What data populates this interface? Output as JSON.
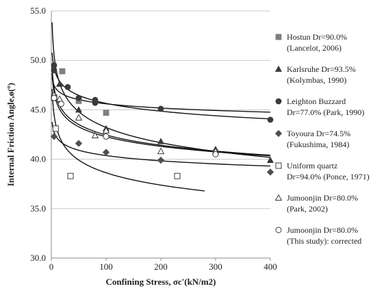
{
  "chart_data": {
    "type": "scatter",
    "xlabel": "Confining Stress, σc'(kN/m2)",
    "ylabel": "Internal Friction Angle,ø(º)",
    "xlim": [
      0,
      400
    ],
    "ylim": [
      30,
      55
    ],
    "x_ticks": [
      "0",
      "100",
      "200",
      "300",
      "400"
    ],
    "y_ticks": [
      "30.0",
      "35.0",
      "40.0",
      "45.0",
      "50.0",
      "55.0"
    ],
    "grid": "horizontal",
    "legend_position": "right",
    "series": [
      {
        "name": "Hostun Dr=90.0%",
        "name2": "(Lancelot, 2006)",
        "marker": "square",
        "color": "#7f7f7f",
        "points": [
          [
            5,
            46.3
          ],
          [
            20,
            48.9
          ],
          [
            50,
            45.9
          ],
          [
            100,
            44.7
          ]
        ]
      },
      {
        "name": "Karlsruhe Dr=93.5%",
        "name2": "(Kolymbas, 1990)",
        "marker": "triangle",
        "color": "#3a3a3a",
        "points": [
          [
            15,
            47.6
          ],
          [
            50,
            45.0
          ],
          [
            100,
            43.1
          ],
          [
            200,
            41.8
          ],
          [
            300,
            41.0
          ],
          [
            400,
            39.9
          ]
        ]
      },
      {
        "name": "Leighton Buzzard",
        "name2": "Dr=77.0% (Park, 1990)",
        "marker": "circle",
        "color": "#3a3a3a",
        "points": [
          [
            5,
            49.5
          ],
          [
            5,
            49.0
          ],
          [
            30,
            47.3
          ],
          [
            50,
            46.2
          ],
          [
            80,
            46.0
          ],
          [
            80,
            45.7
          ],
          [
            200,
            45.1
          ],
          [
            400,
            44.0
          ]
        ]
      },
      {
        "name": "Toyoura Dr=74.5%",
        "name2": "(Fukushima, 1984)",
        "marker": "diamond",
        "color": "#505050",
        "points": [
          [
            5,
            42.3
          ],
          [
            50,
            41.6
          ],
          [
            100,
            40.7
          ],
          [
            200,
            39.9
          ],
          [
            400,
            38.7
          ]
        ]
      },
      {
        "name": "Uniform quartz",
        "name2": "Dr=94.0% (Ponce, 1971)",
        "marker": "square-open",
        "color": "#3a3a3a",
        "points": [
          [
            5,
            46.2
          ],
          [
            8,
            43.1
          ],
          [
            35,
            38.3
          ],
          [
            230,
            38.3
          ]
        ]
      },
      {
        "name": "Jumoonjin Dr=80.0%",
        "name2": "(Park, 2002)",
        "marker": "triangle-open",
        "color": "#3a3a3a",
        "points": [
          [
            5,
            46.5
          ],
          [
            15,
            46.1
          ],
          [
            50,
            44.2
          ],
          [
            80,
            42.4
          ],
          [
            100,
            42.9
          ],
          [
            200,
            40.8
          ],
          [
            300,
            40.8
          ]
        ]
      },
      {
        "name": "Jumoonjin Dr=80.0%",
        "name2": "(This study): corrected",
        "marker": "circle-open",
        "color": "#3a3a3a",
        "points": [
          [
            5,
            46.2
          ],
          [
            18,
            45.6
          ],
          [
            100,
            42.3
          ],
          [
            300,
            40.5
          ]
        ]
      }
    ]
  }
}
